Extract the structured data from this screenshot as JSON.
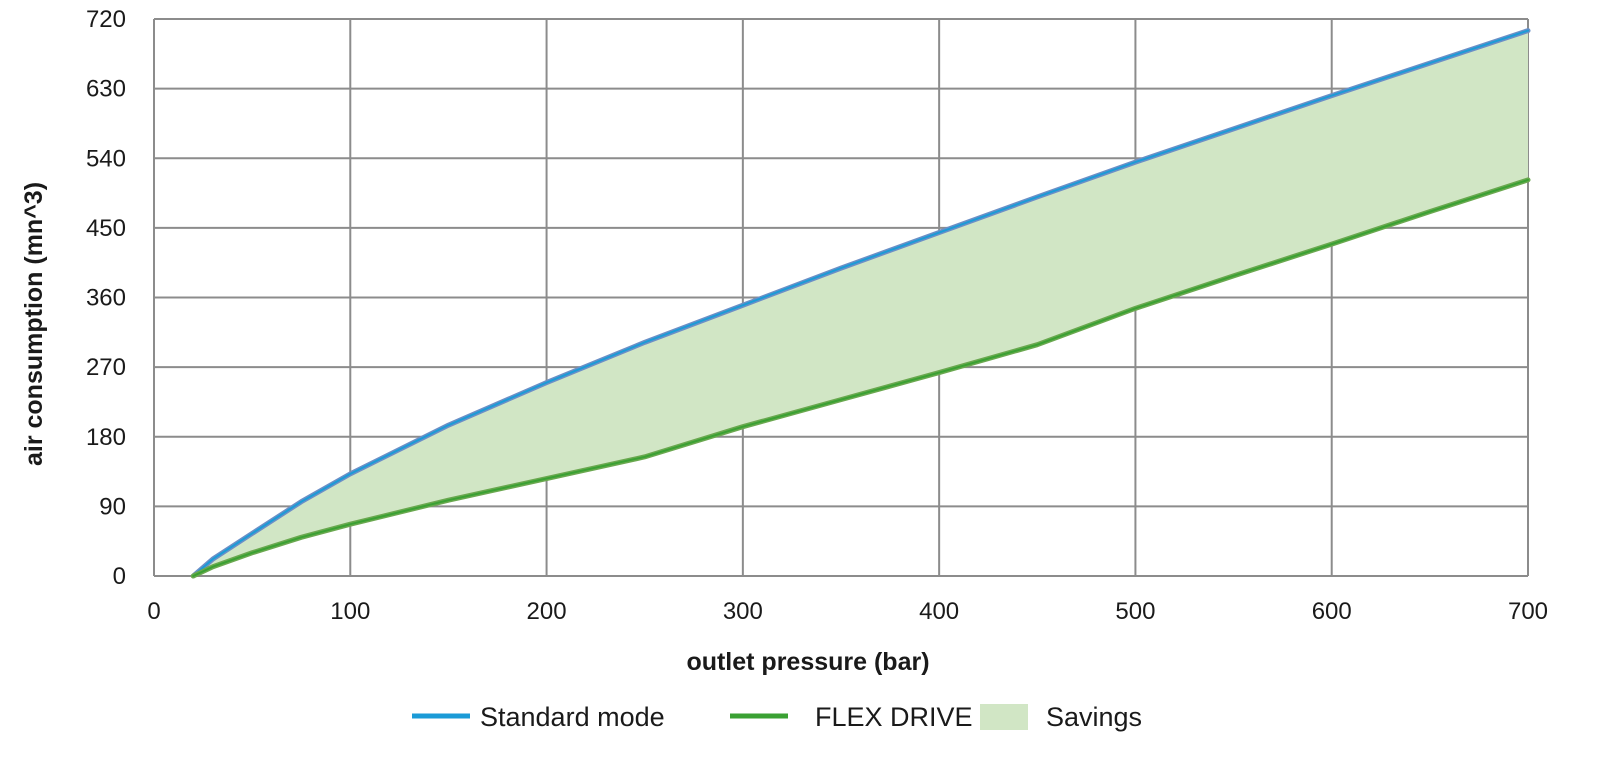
{
  "chart_data": {
    "type": "area",
    "title": "",
    "xlabel": "outlet pressure (bar)",
    "ylabel": "air consumption (mn^3)",
    "xlim": [
      0,
      700
    ],
    "ylim": [
      0,
      720
    ],
    "x_ticks": [
      0,
      100,
      200,
      300,
      400,
      500,
      600,
      700
    ],
    "y_ticks": [
      0,
      90,
      180,
      270,
      360,
      450,
      540,
      630,
      720
    ],
    "x_tick_labels": [
      "0",
      "100",
      "200",
      "300",
      "400",
      "500",
      "600",
      "700"
    ],
    "y_tick_labels": [
      "0",
      "90",
      "180",
      "270",
      "360",
      "450",
      "540",
      "630",
      "720"
    ],
    "grid": true,
    "legend_position": "bottom",
    "series": [
      {
        "name": "Standard mode",
        "color": "#1b9bd7",
        "x": [
          20,
          30,
          50,
          75,
          100,
          150,
          200,
          250,
          300,
          350,
          400,
          450,
          500,
          550,
          600,
          650,
          700
        ],
        "y": [
          0,
          22,
          55,
          96,
          132,
          195,
          250,
          302,
          350,
          398,
          444,
          490,
          535,
          578,
          621,
          663,
          705
        ]
      },
      {
        "name": "FLEX DRIVE",
        "color": "#3aa133",
        "x": [
          20,
          30,
          50,
          75,
          100,
          150,
          200,
          250,
          300,
          350,
          400,
          450,
          500,
          550,
          600,
          650,
          700
        ],
        "y": [
          0,
          12,
          30,
          50,
          67,
          98,
          126,
          154,
          193,
          228,
          263,
          299,
          346,
          388,
          429,
          471,
          512
        ]
      }
    ],
    "fill_between": {
      "name": "Savings",
      "color": "#d1e6c5",
      "between": [
        "Standard mode",
        "FLEX DRIVE"
      ]
    },
    "legend": [
      {
        "label": "Standard mode",
        "kind": "line",
        "color": "#1b9bd7"
      },
      {
        "label": "FLEX DRIVE",
        "kind": "line",
        "color": "#3aa133"
      },
      {
        "label": "Savings",
        "kind": "patch",
        "color": "#d1e6c5"
      }
    ]
  }
}
